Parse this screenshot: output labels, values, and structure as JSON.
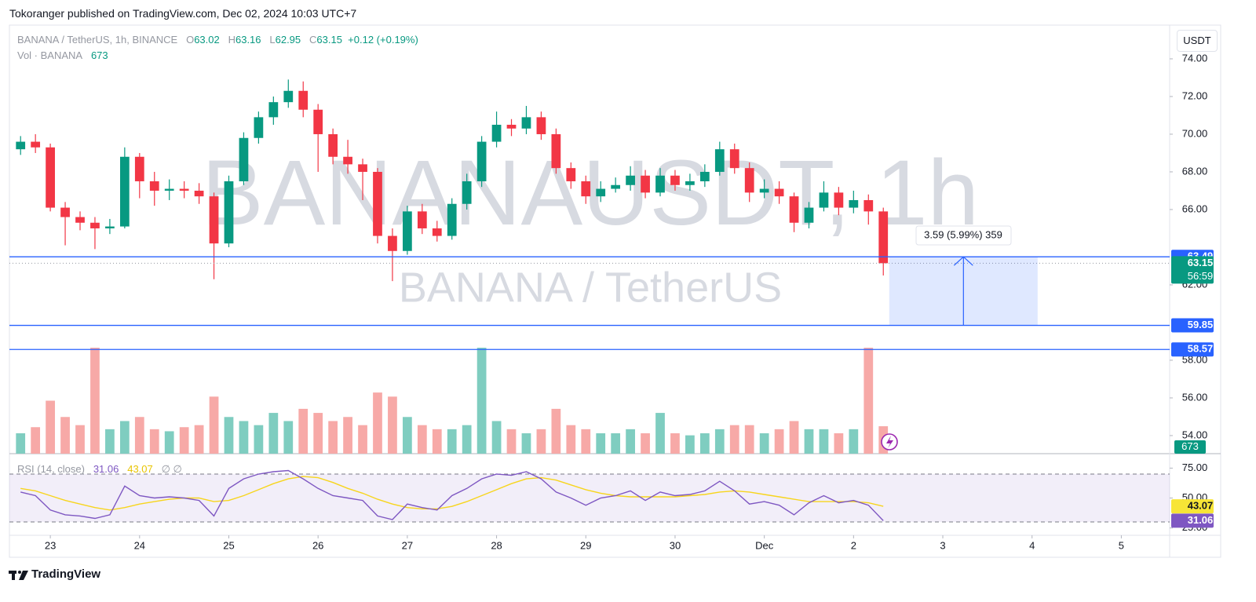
{
  "header": "Tokoranger published on TradingView.com, Dec 02, 2024 10:03 UTC+7",
  "currency_button": "USDT",
  "footer_logo": "TradingView",
  "chart_data": [
    {
      "type": "candlestick",
      "symbol": "BANANA / TetherUS, 1h, BINANCE",
      "legend": [
        {
          "label": "O",
          "value": 63.02
        },
        {
          "label": "H",
          "value": 63.16
        },
        {
          "label": "L",
          "value": 62.95
        },
        {
          "label": "C",
          "value": 63.15
        }
      ],
      "change": "+0.12 (+0.19%)",
      "watermark": "BANANAUSDT, 1h",
      "watermark_sub": "BANANA / TetherUS",
      "x": [
        -8,
        -4,
        0,
        4,
        8,
        12,
        16,
        20,
        24,
        28,
        32,
        36,
        40,
        44,
        48,
        52,
        56,
        60,
        64,
        68,
        72,
        76,
        80,
        84,
        88,
        92,
        96,
        100,
        104,
        108,
        112,
        116,
        120,
        124,
        128,
        132,
        136,
        140,
        144,
        148,
        152,
        156,
        160,
        164,
        168,
        172,
        176,
        180,
        184,
        188,
        192,
        196,
        200,
        204,
        208,
        212,
        216,
        220,
        224
      ],
      "open": [
        69.2,
        69.6,
        69.3,
        66.1,
        65.6,
        65.3,
        65.0,
        65.1,
        68.8,
        67.5,
        67.0,
        67.1,
        67.0,
        66.7,
        64.2,
        67.5,
        69.8,
        70.9,
        71.7,
        72.3,
        71.3,
        70.0,
        68.8,
        68.4,
        68.0,
        64.6,
        63.8,
        65.9,
        65.0,
        64.6,
        66.3,
        67.5,
        69.6,
        70.5,
        70.3,
        70.9,
        70.0,
        68.2,
        67.5,
        66.7,
        67.1,
        67.3,
        67.8,
        66.9,
        67.8,
        67.3,
        67.5,
        68.0,
        69.2,
        68.2,
        66.9,
        67.1,
        66.7,
        65.3,
        66.1,
        66.9,
        66.1,
        66.5,
        65.9
      ],
      "high": [
        69.9,
        70.0,
        69.5,
        66.4,
        65.9,
        65.6,
        65.5,
        69.3,
        69.0,
        68.0,
        67.6,
        67.5,
        67.4,
        66.9,
        67.8,
        70.1,
        71.2,
        72.0,
        72.9,
        72.8,
        71.6,
        70.3,
        69.7,
        68.7,
        68.2,
        65.0,
        66.2,
        66.3,
        65.4,
        66.6,
        67.9,
        69.9,
        71.2,
        70.8,
        71.5,
        71.2,
        70.3,
        68.5,
        67.8,
        67.5,
        67.7,
        68.3,
        68.1,
        68.2,
        68.1,
        67.9,
        68.4,
        69.6,
        69.5,
        68.5,
        67.6,
        67.5,
        66.9,
        66.4,
        67.5,
        67.2,
        67.0,
        66.8,
        66.1
      ],
      "low": [
        68.9,
        69.0,
        65.9,
        64.1,
        64.9,
        63.9,
        64.7,
        65.0,
        66.6,
        66.2,
        66.5,
        66.6,
        66.3,
        62.3,
        64.0,
        67.3,
        69.5,
        70.5,
        71.4,
        70.9,
        68.0,
        68.4,
        67.9,
        66.5,
        64.2,
        62.2,
        63.6,
        64.7,
        64.3,
        64.4,
        66.0,
        67.2,
        69.3,
        69.9,
        70.0,
        69.7,
        67.9,
        67.1,
        66.3,
        66.4,
        66.9,
        67.0,
        66.6,
        66.7,
        67.0,
        67.0,
        67.2,
        67.8,
        67.9,
        66.4,
        66.6,
        66.3,
        64.8,
        65.0,
        65.9,
        65.7,
        65.8,
        65.2,
        62.5
      ],
      "close": [
        69.6,
        69.3,
        66.1,
        65.6,
        65.3,
        65.0,
        65.1,
        68.8,
        67.5,
        67.0,
        67.1,
        67.0,
        66.7,
        64.2,
        67.5,
        69.8,
        70.9,
        71.7,
        72.3,
        71.3,
        70.0,
        68.8,
        68.4,
        68.0,
        64.6,
        63.8,
        65.9,
        65.0,
        64.6,
        66.3,
        67.5,
        69.6,
        70.5,
        70.3,
        70.9,
        70.0,
        68.2,
        67.5,
        66.7,
        67.1,
        67.3,
        67.8,
        66.9,
        67.8,
        67.3,
        67.5,
        68.0,
        69.2,
        68.2,
        66.9,
        67.1,
        66.7,
        65.3,
        66.1,
        66.9,
        66.1,
        66.5,
        65.9,
        63.15
      ],
      "up_color": "#089981",
      "down_color": "#f23645",
      "volume": {
        "name": "Vol · BANANA",
        "up_color": "#7fcdc0",
        "down_color": "#f7a9a7",
        "values": [
          500,
          650,
          1300,
          900,
          700,
          2600,
          600,
          800,
          900,
          600,
          550,
          650,
          700,
          1400,
          900,
          800,
          700,
          1000,
          800,
          1100,
          1000,
          800,
          900,
          700,
          1500,
          1400,
          900,
          700,
          600,
          600,
          700,
          2600,
          800,
          600,
          500,
          600,
          1100,
          700,
          600,
          500,
          500,
          600,
          500,
          1000,
          500,
          450,
          500,
          600,
          700,
          700,
          500,
          600,
          800,
          600,
          600,
          500,
          600,
          2600,
          673
        ]
      },
      "countdown": "56:59",
      "levels": [
        {
          "value": 63.49,
          "color": "#2962ff"
        },
        {
          "value": 59.85,
          "color": "#2962ff"
        },
        {
          "value": 58.57,
          "color": "#2962ff"
        }
      ],
      "measure": {
        "label": "3.59 (5.99%) 359",
        "x": [
          225.6,
          265.5
        ],
        "color": "#2962ff"
      },
      "xlim": [
        -11,
        301
      ],
      "xticks": [
        {
          "value": 0,
          "label": "23"
        },
        {
          "value": 24,
          "label": "24"
        },
        {
          "value": 48,
          "label": "25"
        },
        {
          "value": 72,
          "label": "26"
        },
        {
          "value": 96,
          "label": "27"
        },
        {
          "value": 120,
          "label": "28"
        },
        {
          "value": 144,
          "label": "29"
        },
        {
          "value": 168,
          "label": "30"
        },
        {
          "value": 192,
          "label": "Dec"
        },
        {
          "value": 216,
          "label": "2"
        },
        {
          "value": 240,
          "label": "3"
        },
        {
          "value": 264,
          "label": "4"
        },
        {
          "value": 288,
          "label": "5"
        }
      ],
      "ylim": [
        53.04,
        75.79
      ],
      "yticks": [
        {
          "value": 54,
          "label": "54.00"
        },
        {
          "value": 56,
          "label": "56.00"
        },
        {
          "value": 58,
          "label": "58.00"
        },
        {
          "value": 62,
          "label": "62.00"
        },
        {
          "value": 66,
          "label": "66.00"
        },
        {
          "value": 68,
          "label": "68.00"
        },
        {
          "value": 70,
          "label": "70.00"
        },
        {
          "value": 72,
          "label": "72.00"
        },
        {
          "value": 74,
          "label": "74.00"
        }
      ],
      "grid": false
    },
    {
      "type": "line",
      "title": "RSI (14, close)",
      "nulls": "∅ ∅",
      "series": [
        {
          "color": "#7e57c2",
          "badge_color": "#7e57c2",
          "values": [
            55,
            52,
            40,
            36,
            35,
            33,
            36,
            60,
            52,
            50,
            51,
            50,
            48,
            35,
            58,
            66,
            70,
            72,
            73,
            66,
            58,
            52,
            50,
            48,
            35,
            32,
            45,
            42,
            40,
            52,
            58,
            66,
            70,
            69,
            72,
            66,
            55,
            50,
            44,
            50,
            52,
            56,
            48,
            55,
            52,
            53,
            56,
            64,
            56,
            45,
            47,
            44,
            36,
            46,
            52,
            46,
            48,
            44,
            31.06
          ]
        },
        {
          "color": "#f7d51d",
          "badge_color": "#f7e536",
          "values": [
            58,
            56,
            52,
            48,
            45,
            42,
            40,
            42,
            45,
            47,
            49,
            50,
            50,
            47,
            48,
            52,
            57,
            62,
            66,
            68,
            67,
            63,
            58,
            54,
            49,
            45,
            42,
            41,
            41,
            43,
            47,
            52,
            57,
            62,
            66,
            67,
            65,
            61,
            57,
            54,
            52,
            51,
            51,
            51,
            51,
            52,
            53,
            55,
            56,
            55,
            53,
            51,
            49,
            47,
            47,
            47,
            47,
            46,
            43.07
          ]
        }
      ],
      "bands": [
        70,
        30
      ],
      "ylim": [
        20.2,
        79.2
      ],
      "yticks": [
        {
          "value": 75,
          "label": "75.00"
        },
        {
          "value": 50,
          "label": "50.00"
        },
        {
          "value": 25,
          "label": "25.00"
        }
      ]
    }
  ]
}
